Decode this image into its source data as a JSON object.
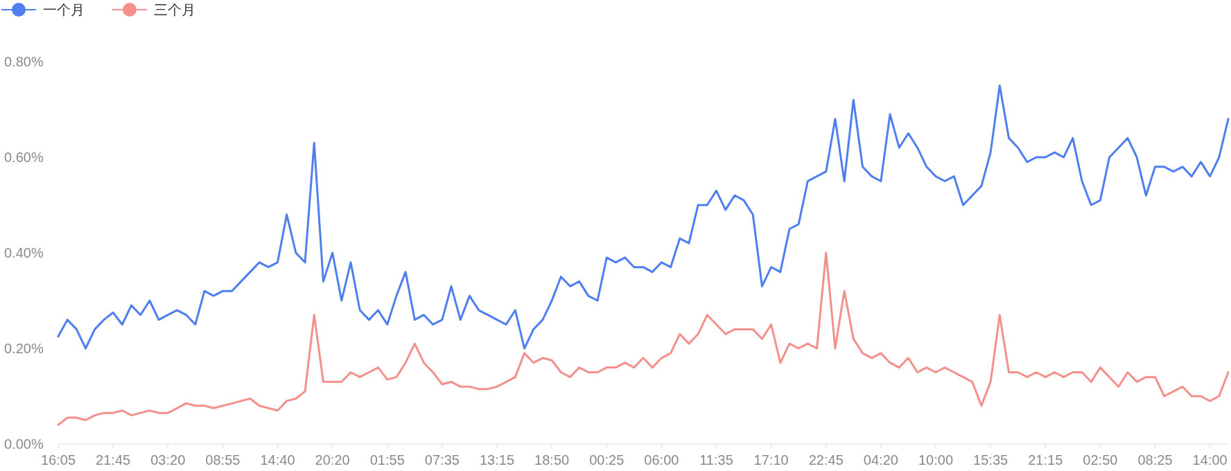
{
  "chart_data": {
    "type": "line",
    "legend": "top left",
    "ylim": [
      0,
      0.8
    ],
    "yticks": [
      {
        "value": 0,
        "label": "0.00%"
      },
      {
        "value": 0.2,
        "label": "0.20%"
      },
      {
        "value": 0.4,
        "label": "0.40%"
      },
      {
        "value": 0.6,
        "label": "0.60%"
      },
      {
        "value": 0.8,
        "label": "0.80%"
      }
    ],
    "categories": [
      "16:05",
      null,
      null,
      null,
      null,
      null,
      "21:45",
      null,
      null,
      null,
      null,
      null,
      "03:20",
      null,
      null,
      null,
      null,
      null,
      "08:55",
      null,
      null,
      null,
      null,
      null,
      "14:40",
      null,
      null,
      null,
      null,
      null,
      "20:20",
      null,
      null,
      null,
      null,
      null,
      "01:55",
      null,
      null,
      null,
      null,
      null,
      "07:35",
      null,
      null,
      null,
      null,
      null,
      "13:15",
      null,
      null,
      null,
      null,
      null,
      "18:50",
      null,
      null,
      null,
      null,
      null,
      "00:25",
      null,
      null,
      null,
      null,
      null,
      "06:00",
      null,
      null,
      null,
      null,
      null,
      "11:35",
      null,
      null,
      null,
      null,
      null,
      "17:10",
      null,
      null,
      null,
      null,
      null,
      "22:45",
      null,
      null,
      null,
      null,
      null,
      "04:20",
      null,
      null,
      null,
      null,
      null,
      "10:00",
      null,
      null,
      null,
      null,
      null,
      "15:35",
      null,
      null,
      null,
      null,
      null,
      "21:15",
      null,
      null,
      null,
      null,
      null,
      "02:50",
      null,
      null,
      null,
      null,
      null,
      "08:25",
      null,
      null,
      null,
      null,
      null,
      "14:00",
      null,
      null
    ],
    "series": [
      {
        "name": "一个月",
        "color": "#4f7ef0",
        "values": [
          0.225,
          0.26,
          0.24,
          0.2,
          0.24,
          0.26,
          0.275,
          0.25,
          0.29,
          0.27,
          0.3,
          0.26,
          0.27,
          0.28,
          0.27,
          0.25,
          0.32,
          0.31,
          0.32,
          0.32,
          0.34,
          0.36,
          0.38,
          0.37,
          0.38,
          0.48,
          0.4,
          0.38,
          0.63,
          0.34,
          0.4,
          0.3,
          0.38,
          0.28,
          0.26,
          0.28,
          0.25,
          0.31,
          0.36,
          0.26,
          0.27,
          0.25,
          0.26,
          0.33,
          0.26,
          0.31,
          0.28,
          0.27,
          0.26,
          0.25,
          0.28,
          0.2,
          0.24,
          0.26,
          0.3,
          0.35,
          0.33,
          0.34,
          0.31,
          0.3,
          0.39,
          0.38,
          0.39,
          0.37,
          0.37,
          0.36,
          0.38,
          0.37,
          0.43,
          0.42,
          0.5,
          0.5,
          0.53,
          0.49,
          0.52,
          0.51,
          0.48,
          0.33,
          0.37,
          0.36,
          0.45,
          0.46,
          0.55,
          0.56,
          0.57,
          0.68,
          0.55,
          0.72,
          0.58,
          0.56,
          0.55,
          0.69,
          0.62,
          0.65,
          0.62,
          0.58,
          0.56,
          0.55,
          0.56,
          0.5,
          0.52,
          0.54,
          0.61,
          0.75,
          0.64,
          0.62,
          0.59,
          0.6,
          0.6,
          0.61,
          0.6,
          0.64,
          0.55,
          0.5,
          0.51,
          0.6,
          0.62,
          0.64,
          0.6,
          0.52,
          0.58,
          0.58,
          0.57,
          0.58,
          0.56,
          0.59,
          0.56,
          0.6,
          0.68
        ]
      },
      {
        "name": "三个月",
        "color": "#f4908c",
        "values": [
          0.04,
          0.055,
          0.055,
          0.05,
          0.06,
          0.065,
          0.065,
          0.07,
          0.06,
          0.065,
          0.07,
          0.065,
          0.065,
          0.075,
          0.085,
          0.08,
          0.08,
          0.075,
          0.08,
          0.085,
          0.09,
          0.095,
          0.08,
          0.075,
          0.07,
          0.09,
          0.095,
          0.11,
          0.27,
          0.13,
          0.13,
          0.13,
          0.15,
          0.14,
          0.15,
          0.16,
          0.135,
          0.14,
          0.17,
          0.21,
          0.17,
          0.15,
          0.125,
          0.13,
          0.12,
          0.12,
          0.115,
          0.115,
          0.12,
          0.13,
          0.14,
          0.19,
          0.17,
          0.18,
          0.175,
          0.15,
          0.14,
          0.16,
          0.15,
          0.15,
          0.16,
          0.16,
          0.17,
          0.16,
          0.18,
          0.16,
          0.18,
          0.19,
          0.23,
          0.21,
          0.23,
          0.27,
          0.25,
          0.23,
          0.24,
          0.24,
          0.24,
          0.22,
          0.25,
          0.17,
          0.21,
          0.2,
          0.21,
          0.2,
          0.4,
          0.2,
          0.32,
          0.22,
          0.19,
          0.18,
          0.19,
          0.17,
          0.16,
          0.18,
          0.15,
          0.16,
          0.15,
          0.16,
          0.15,
          0.14,
          0.13,
          0.08,
          0.13,
          0.27,
          0.15,
          0.15,
          0.14,
          0.15,
          0.14,
          0.15,
          0.14,
          0.15,
          0.15,
          0.13,
          0.16,
          0.14,
          0.12,
          0.15,
          0.13,
          0.14,
          0.14,
          0.1,
          0.11,
          0.12,
          0.1,
          0.1,
          0.09,
          0.1,
          0.15
        ]
      }
    ]
  }
}
